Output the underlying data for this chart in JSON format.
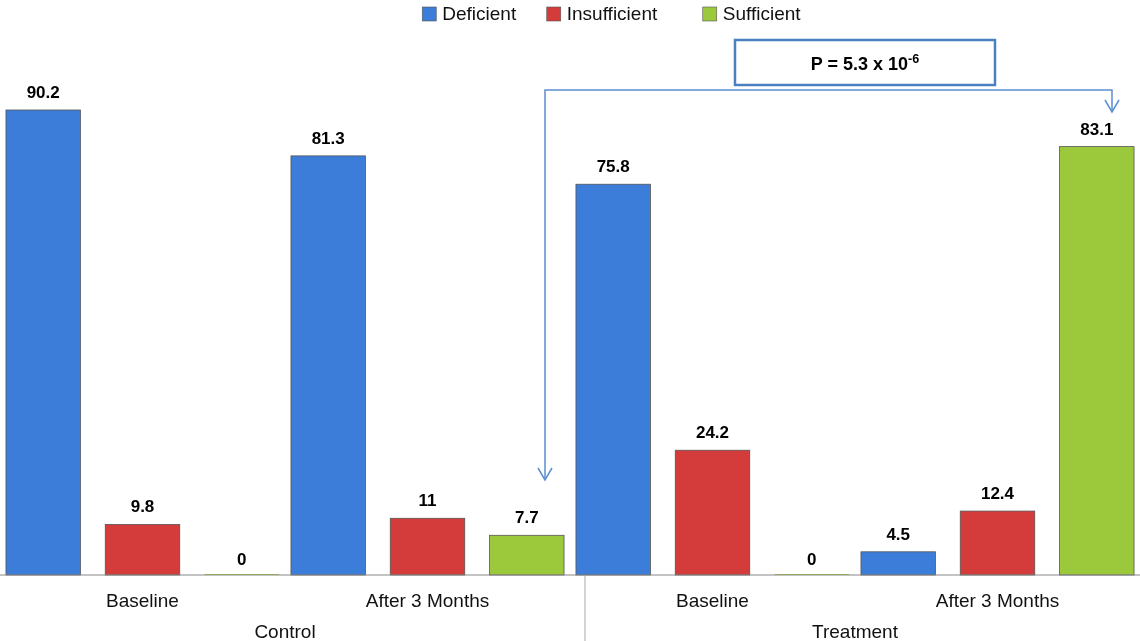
{
  "chart_data": {
    "type": "bar",
    "categories": [
      "Baseline",
      "After 3 Months",
      "Baseline",
      "After 3 Months"
    ],
    "series": [
      {
        "name": "Deficient",
        "color": "#3b7dd8",
        "values": [
          90.2,
          81.3,
          75.8,
          4.5
        ]
      },
      {
        "name": "Insufficient",
        "color": "#d43b3b",
        "values": [
          9.8,
          11,
          24.2,
          12.4
        ]
      },
      {
        "name": "Sufficient",
        "color": "#9cc93c",
        "values": [
          0,
          7.7,
          0,
          83.1
        ]
      }
    ],
    "data_labels": true,
    "legend": "top",
    "annotations": [
      "Control",
      "Treatment",
      "P = 5.3 x 10$^{-6}$"
    ]
  }
}
